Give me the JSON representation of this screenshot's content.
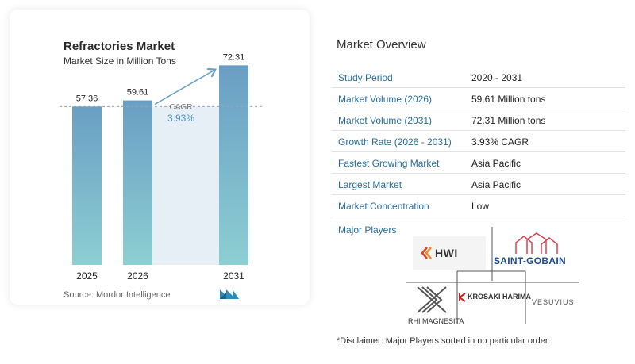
{
  "chart_data": {
    "type": "bar",
    "title": "Refractories Market",
    "subtitle": "Market Size in Million Tons",
    "categories": [
      "2025",
      "2026",
      "2031"
    ],
    "values": [
      57.36,
      59.61,
      72.31
    ],
    "value_labels": [
      "57.36",
      "59.61",
      "72.31"
    ],
    "ylim": [
      0,
      75
    ],
    "annotation": {
      "label": "CAGR",
      "value": "3.93%"
    },
    "colors": {
      "bar_top": "#6a9ec4",
      "bar_bottom": "#8ccfd2",
      "band": "#e6eef6",
      "arrow": "#6aa3c8",
      "cagr": "#4f8fbf"
    }
  },
  "source": "Source:  Mordor Intelligence",
  "overview": {
    "title": "Market Overview",
    "rows": [
      {
        "label": "Study Period",
        "value": "2020 - 2031"
      },
      {
        "label": "Market Volume (2026)",
        "value": "59.61 Million tons"
      },
      {
        "label": "Market Volume (2031)",
        "value": "72.31 Million tons"
      },
      {
        "label": "Growth Rate (2026 - 2031)",
        "value": "3.93% CAGR"
      },
      {
        "label": "Fastest Growing Market",
        "value": "Asia Pacific"
      },
      {
        "label": "Largest Market",
        "value": "Asia Pacific"
      },
      {
        "label": "Market Concentration",
        "value": "Low"
      }
    ],
    "players_title": "Major Players",
    "players": [
      "HWI",
      "SAINT-GOBAIN",
      "RHI MAGNESITA",
      "KROSAKI HARIMA",
      "VESUVIUS"
    ],
    "disclaimer": "*Disclaimer: Major Players sorted in no particular order"
  },
  "colors": {
    "label_blue": "#2a6e9e",
    "saint_gobain": "#1f4a8c",
    "hwi_red": "#e0452b",
    "krosaki_red": "#c62828"
  }
}
